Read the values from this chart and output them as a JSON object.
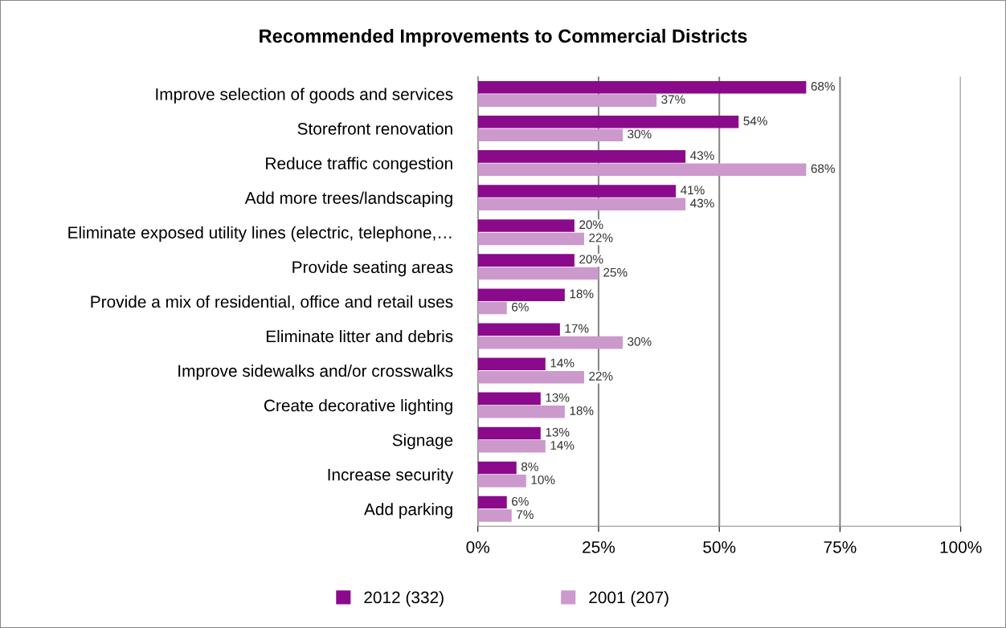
{
  "chart_data": {
    "type": "bar",
    "orientation": "horizontal",
    "title": "Recommended Improvements to Commercial Districts",
    "categories": [
      "Improve selection of goods and services",
      "Storefront renovation",
      "Reduce traffic congestion",
      "Add more trees/landscaping",
      "Eliminate exposed utility lines (electric, telephone,…",
      "Provide seating areas",
      "Provide a mix of residential, office and retail uses",
      "Eliminate litter and debris",
      "Improve sidewalks and/or crosswalks",
      "Create decorative lighting",
      "Signage",
      "Increase security",
      "Add parking"
    ],
    "series": [
      {
        "name": "2012 (332)",
        "color": "#8b0a8b",
        "values": [
          68,
          54,
          43,
          41,
          20,
          20,
          18,
          17,
          14,
          13,
          13,
          8,
          6
        ],
        "value_labels": [
          "68%",
          "54%",
          "43%",
          "41%",
          "20%",
          "20%",
          "18%",
          "17%",
          "14%",
          "13%",
          "13%",
          "8%",
          "6%"
        ]
      },
      {
        "name": "2001 (207)",
        "color": "#cc99cc",
        "values": [
          37,
          30,
          68,
          43,
          22,
          25,
          6,
          30,
          22,
          18,
          14,
          10,
          7
        ],
        "value_labels": [
          "37%",
          "30%",
          "68%",
          "43%",
          "22%",
          "25%",
          "6%",
          "30%",
          "22%",
          "18%",
          "14%",
          "10%",
          "7%"
        ]
      }
    ],
    "xlim": [
      0,
      100
    ],
    "xticks": [
      {
        "value": 0,
        "label": "0%"
      },
      {
        "value": 25,
        "label": "25%"
      },
      {
        "value": 50,
        "label": "50%"
      },
      {
        "value": 75,
        "label": "75%"
      },
      {
        "value": 100,
        "label": "100%"
      }
    ],
    "grid": "x",
    "legend": "bottom"
  }
}
